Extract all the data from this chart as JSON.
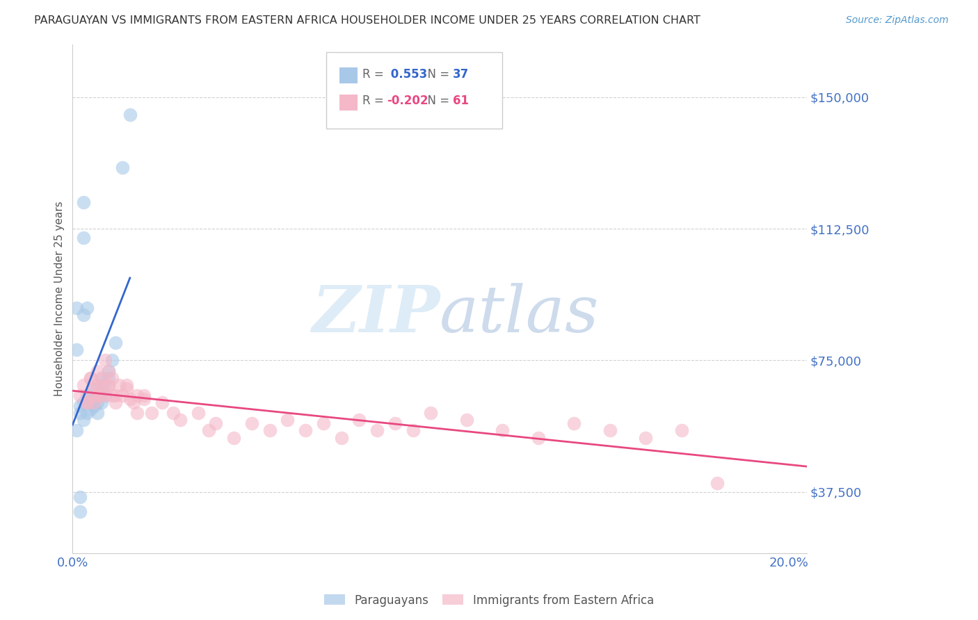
{
  "title": "PARAGUAYAN VS IMMIGRANTS FROM EASTERN AFRICA HOUSEHOLDER INCOME UNDER 25 YEARS CORRELATION CHART",
  "source": "Source: ZipAtlas.com",
  "ylabel": "Householder Income Under 25 years",
  "xlim": [
    0.0,
    0.205
  ],
  "ylim": [
    20000,
    165000
  ],
  "yticks": [
    37500,
    75000,
    112500,
    150000
  ],
  "ytick_labels": [
    "$37,500",
    "$75,000",
    "$112,500",
    "$150,000"
  ],
  "xticks": [
    0.0,
    0.04,
    0.08,
    0.12,
    0.16,
    0.2
  ],
  "blue_R": 0.553,
  "blue_N": 37,
  "pink_R": -0.202,
  "pink_N": 61,
  "blue_color": "#a8c8e8",
  "pink_color": "#f4b8c8",
  "blue_line_color": "#3366cc",
  "pink_line_color": "#e84880",
  "tick_color": "#4472c4",
  "watermark_color": "#d0e4f4",
  "blue_scatter_x": [
    0.001,
    0.002,
    0.002,
    0.003,
    0.003,
    0.004,
    0.004,
    0.005,
    0.005,
    0.005,
    0.006,
    0.006,
    0.006,
    0.007,
    0.007,
    0.007,
    0.007,
    0.008,
    0.008,
    0.008,
    0.008,
    0.009,
    0.009,
    0.01,
    0.01,
    0.011,
    0.012,
    0.014,
    0.016,
    0.003,
    0.003,
    0.004,
    0.001,
    0.002,
    0.002,
    0.001,
    0.003
  ],
  "blue_scatter_y": [
    55000,
    62000,
    60000,
    58000,
    63000,
    60000,
    65000,
    63000,
    61000,
    65000,
    62000,
    64000,
    67000,
    60000,
    63000,
    65000,
    68000,
    63000,
    66000,
    68000,
    70000,
    65000,
    68000,
    70000,
    72000,
    75000,
    80000,
    130000,
    145000,
    110000,
    120000,
    90000,
    78000,
    32000,
    36000,
    90000,
    88000
  ],
  "pink_scatter_x": [
    0.002,
    0.003,
    0.004,
    0.005,
    0.006,
    0.006,
    0.007,
    0.007,
    0.008,
    0.008,
    0.009,
    0.009,
    0.01,
    0.01,
    0.011,
    0.011,
    0.012,
    0.013,
    0.014,
    0.015,
    0.016,
    0.017,
    0.018,
    0.02,
    0.022,
    0.025,
    0.028,
    0.03,
    0.035,
    0.038,
    0.04,
    0.045,
    0.05,
    0.055,
    0.06,
    0.065,
    0.07,
    0.075,
    0.08,
    0.085,
    0.09,
    0.095,
    0.1,
    0.11,
    0.12,
    0.13,
    0.14,
    0.15,
    0.16,
    0.17,
    0.18,
    0.004,
    0.005,
    0.006,
    0.007,
    0.008,
    0.01,
    0.012,
    0.015,
    0.018,
    0.02
  ],
  "pink_scatter_y": [
    65000,
    68000,
    63000,
    70000,
    67000,
    63000,
    72000,
    68000,
    65000,
    70000,
    75000,
    65000,
    72000,
    68000,
    65000,
    70000,
    63000,
    68000,
    65000,
    67000,
    64000,
    63000,
    60000,
    65000,
    60000,
    63000,
    60000,
    58000,
    60000,
    55000,
    57000,
    53000,
    57000,
    55000,
    58000,
    55000,
    57000,
    53000,
    58000,
    55000,
    57000,
    55000,
    60000,
    58000,
    55000,
    53000,
    57000,
    55000,
    53000,
    55000,
    40000,
    63000,
    70000,
    65000,
    65000,
    68000,
    68000,
    65000,
    68000,
    65000,
    64000
  ]
}
